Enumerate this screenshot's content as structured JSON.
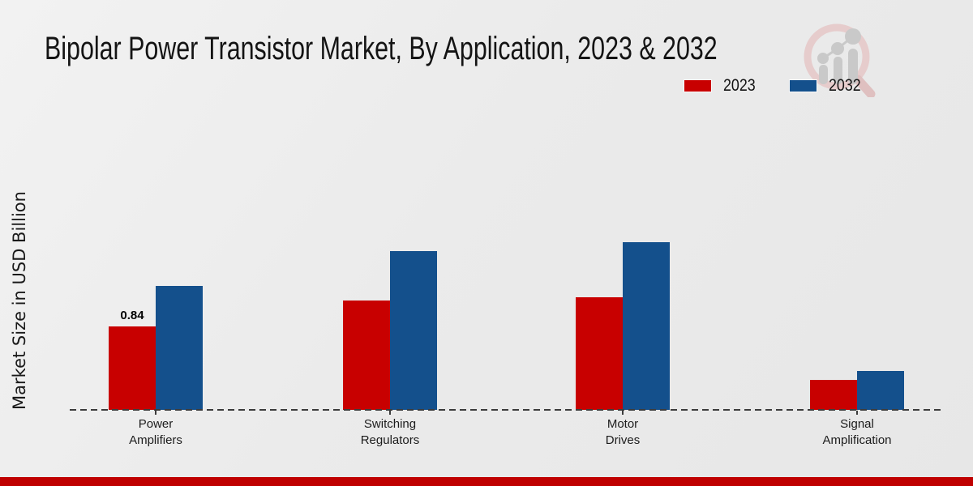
{
  "title": "Bipolar Power Transistor Market, By Application, 2023 & 2032",
  "ylabel": "Market Size in USD Billion",
  "colors": {
    "series_2023": "#c80000",
    "series_2032": "#14508c",
    "footer": "#bf0000",
    "baseline": "#3c3c3c",
    "background": "#ebebeb"
  },
  "legend": {
    "position": "top-right",
    "items": [
      {
        "label": "2023",
        "color": "#c80000"
      },
      {
        "label": "2032",
        "color": "#14508c"
      }
    ]
  },
  "logo": {
    "name": "market-research-magnifier-logo"
  },
  "chart_data": {
    "type": "bar",
    "title": "Bipolar Power Transistor Market, By Application, 2023 & 2032",
    "xlabel": "",
    "ylabel": "Market Size in USD Billion",
    "categories": [
      "Power\nAmplifiers",
      "Switching\nRegulators",
      "Motor\nDrives",
      "Signal\nAmplification"
    ],
    "series": [
      {
        "name": "2023",
        "color": "#c80000",
        "values": [
          0.84,
          1.1,
          1.13,
          0.3
        ]
      },
      {
        "name": "2032",
        "color": "#14508c",
        "values": [
          1.25,
          1.6,
          1.69,
          0.39
        ]
      }
    ],
    "annotations": [
      {
        "series": "2023",
        "category_index": 0,
        "text": "0.84"
      }
    ],
    "ylim": [
      0,
      1.85
    ],
    "grid": false,
    "axis_style": "dashed-baseline-only",
    "legend_position": "top-right"
  }
}
